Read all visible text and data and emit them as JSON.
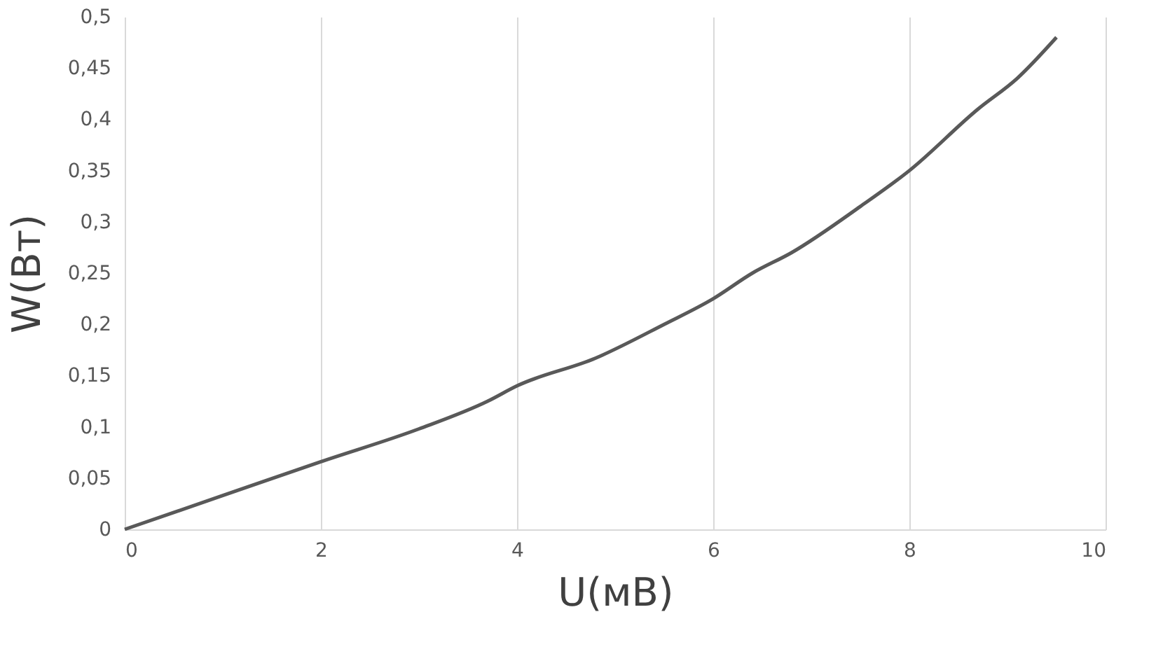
{
  "chart_data": {
    "type": "line",
    "xlabel": "U(мВ)",
    "ylabel": "W(Вт)",
    "x": [
      0,
      1,
      2,
      3,
      3.7,
      4,
      4.8,
      5.5,
      6,
      6.4,
      6.8,
      7.5,
      8,
      8.7,
      9.1,
      9.5
    ],
    "series": [
      {
        "color": "#595959",
        "values": [
          0,
          0.033,
          0.066,
          0.098,
          0.125,
          0.14,
          0.167,
          0.2,
          0.225,
          0.25,
          0.27,
          0.315,
          0.35,
          0.41,
          0.44,
          0.48
        ]
      }
    ],
    "xlim": [
      0,
      10
    ],
    "xticks": [
      0,
      2,
      4,
      6,
      8,
      10
    ],
    "ylim": [
      0,
      0.5
    ],
    "yticks": [
      0,
      {
        "value": 0.05,
        "label": "0,05"
      },
      {
        "value": 0.1,
        "label": "0,1"
      },
      {
        "value": 0.15,
        "label": "0,15"
      },
      {
        "value": 0.2,
        "label": "0,2"
      },
      {
        "value": 0.25,
        "label": "0,25"
      },
      {
        "value": 0.3,
        "label": "0,3"
      },
      {
        "value": 0.35,
        "label": "0,35"
      },
      {
        "value": 0.4,
        "label": "0,4"
      },
      {
        "value": 0.45,
        "label": "0,45"
      },
      {
        "value": 0.5,
        "label": "0,5"
      }
    ],
    "grid": "x",
    "marker": "none",
    "line_style": "solid",
    "legend": false
  }
}
